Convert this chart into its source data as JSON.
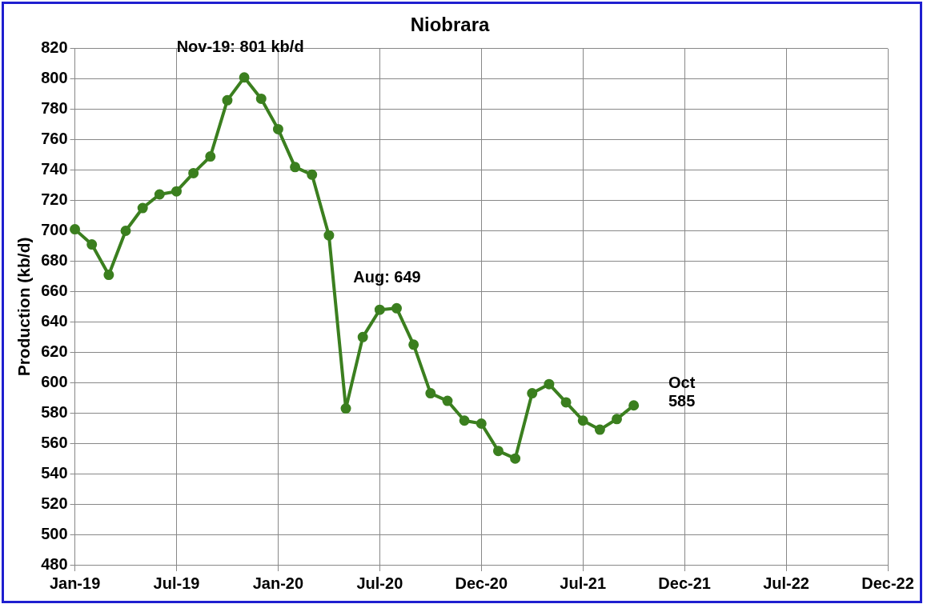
{
  "chart_data": {
    "type": "line",
    "title": "Niobrara",
    "ylabel": "Production (kb/d)",
    "categories": [
      "Jan-19",
      null,
      null,
      null,
      null,
      null,
      "Jul-19",
      null,
      null,
      null,
      null,
      null,
      "Jan-20",
      null,
      null,
      null,
      null,
      null,
      "Jul-20",
      null,
      null,
      null,
      null,
      null,
      "Dec-20",
      null,
      null,
      null,
      null,
      null,
      "Jul-21",
      null,
      null,
      null,
      null,
      null,
      "Dec-21",
      null,
      null,
      null,
      null,
      null,
      "Jul-22",
      null,
      null,
      null,
      null,
      null,
      "Dec-22"
    ],
    "series": [
      {
        "color": "#3b7f1f",
        "values": [
          701,
          691,
          671,
          700,
          715,
          724,
          726,
          738,
          749,
          786,
          801,
          787,
          767,
          742,
          737,
          697,
          583,
          630,
          648,
          649,
          625,
          593,
          588,
          575,
          573,
          555,
          550,
          593,
          599,
          587,
          575,
          569,
          576,
          585,
          null,
          null,
          null,
          null,
          null,
          null,
          null,
          null,
          null,
          null,
          null,
          null,
          null,
          null,
          null
        ]
      }
    ],
    "ylim": [
      480,
      820
    ],
    "yticks": [
      480,
      500,
      520,
      540,
      560,
      580,
      600,
      620,
      640,
      660,
      680,
      700,
      720,
      740,
      760,
      780,
      800,
      820
    ],
    "grid": true,
    "marker": "circle",
    "line_style": "solid",
    "annotations": [
      "Nov-19: 801 kb/d",
      "Aug: 649",
      "Oct\n585"
    ]
  }
}
